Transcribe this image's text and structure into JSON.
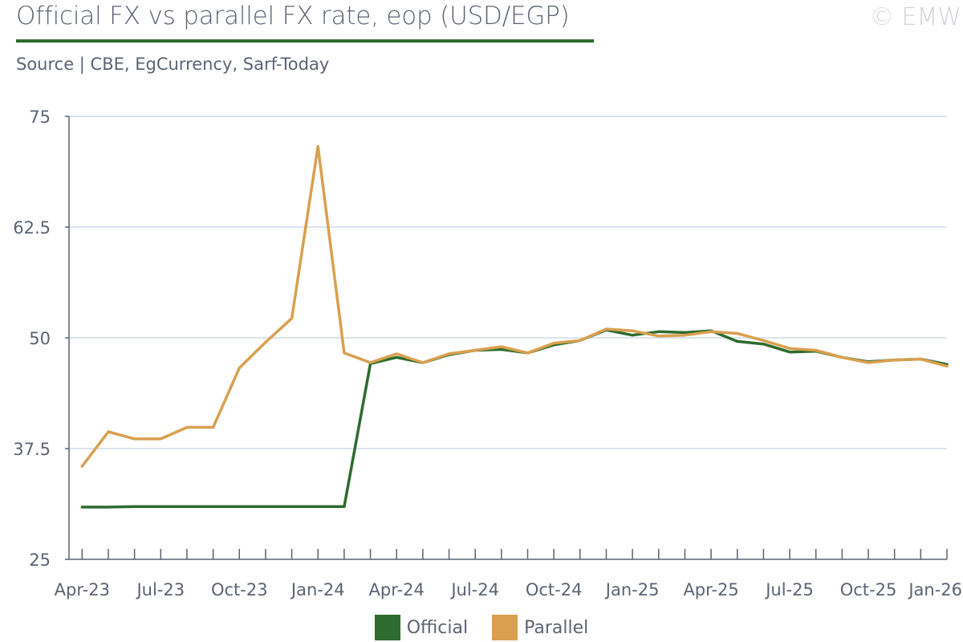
{
  "header": {
    "title": "Official FX vs parallel FX rate, eop (USD/EGP)",
    "watermark": "© EMW",
    "subtitle": "Source | CBE, EgCurrency, Sarf-Today"
  },
  "colors": {
    "official": "#2e6b2e",
    "parallel": "#d9a050",
    "title_rule": "#2e6b2e",
    "gridline": "#dbe4ee",
    "axis": "#5c6373"
  },
  "chart_data": {
    "type": "line",
    "title": "Official FX vs parallel FX rate, eop (USD/EGP)",
    "xlabel": "",
    "ylabel": "",
    "ylim": [
      25,
      75
    ],
    "yticks": [
      "75",
      "62.5",
      "50",
      "37.5",
      "25"
    ],
    "ytick_values": [
      75,
      62.5,
      50,
      37.5,
      25
    ],
    "x": [
      "Apr-23",
      "May-23",
      "Jun-23",
      "Jul-23",
      "Aug-23",
      "Sep-23",
      "Oct-23",
      "Nov-23",
      "Dec-23",
      "Jan-24",
      "Feb-24",
      "Mar-24",
      "Apr-24",
      "May-24",
      "Jun-24",
      "Jul-24",
      "Aug-24",
      "Sep-24",
      "Oct-24",
      "Nov-24",
      "Dec-24",
      "Jan-25",
      "Feb-25",
      "Mar-25",
      "Apr-25",
      "May-25",
      "Jun-25",
      "Jul-25",
      "Aug-25",
      "Sep-25",
      "Oct-25",
      "Nov-25",
      "Dec-25",
      "Jan-26"
    ],
    "xtick_labels": [
      "Apr-23",
      "Jul-23",
      "Oct-23",
      "Jan-24",
      "Apr-24",
      "Jul-24",
      "Oct-24",
      "Jan-25",
      "Apr-25",
      "Jul-25",
      "Oct-25",
      "Jan-26"
    ],
    "grid": true,
    "legend_position": "bottom-center",
    "series": [
      {
        "name": "Official",
        "color": "#2e6b2e",
        "values": [
          30.9,
          30.9,
          30.95,
          30.95,
          30.95,
          30.95,
          30.95,
          30.95,
          30.95,
          30.95,
          30.95,
          47.1,
          47.8,
          47.2,
          48.1,
          48.6,
          48.7,
          48.3,
          49.2,
          49.7,
          50.9,
          50.3,
          50.7,
          50.6,
          50.8,
          49.6,
          49.3,
          48.4,
          48.5,
          47.8,
          47.3,
          47.5,
          47.6,
          47.0
        ]
      },
      {
        "name": "Parallel",
        "color": "#d9a050",
        "values": [
          35.5,
          39.4,
          38.6,
          38.6,
          39.9,
          39.9,
          46.6,
          49.5,
          52.2,
          71.6,
          48.3,
          47.2,
          48.2,
          47.2,
          48.2,
          48.6,
          49.0,
          48.3,
          49.4,
          49.7,
          51.0,
          50.8,
          50.2,
          50.3,
          50.7,
          50.5,
          49.7,
          48.8,
          48.6,
          47.8,
          47.2,
          47.5,
          47.6,
          46.8
        ]
      }
    ]
  }
}
